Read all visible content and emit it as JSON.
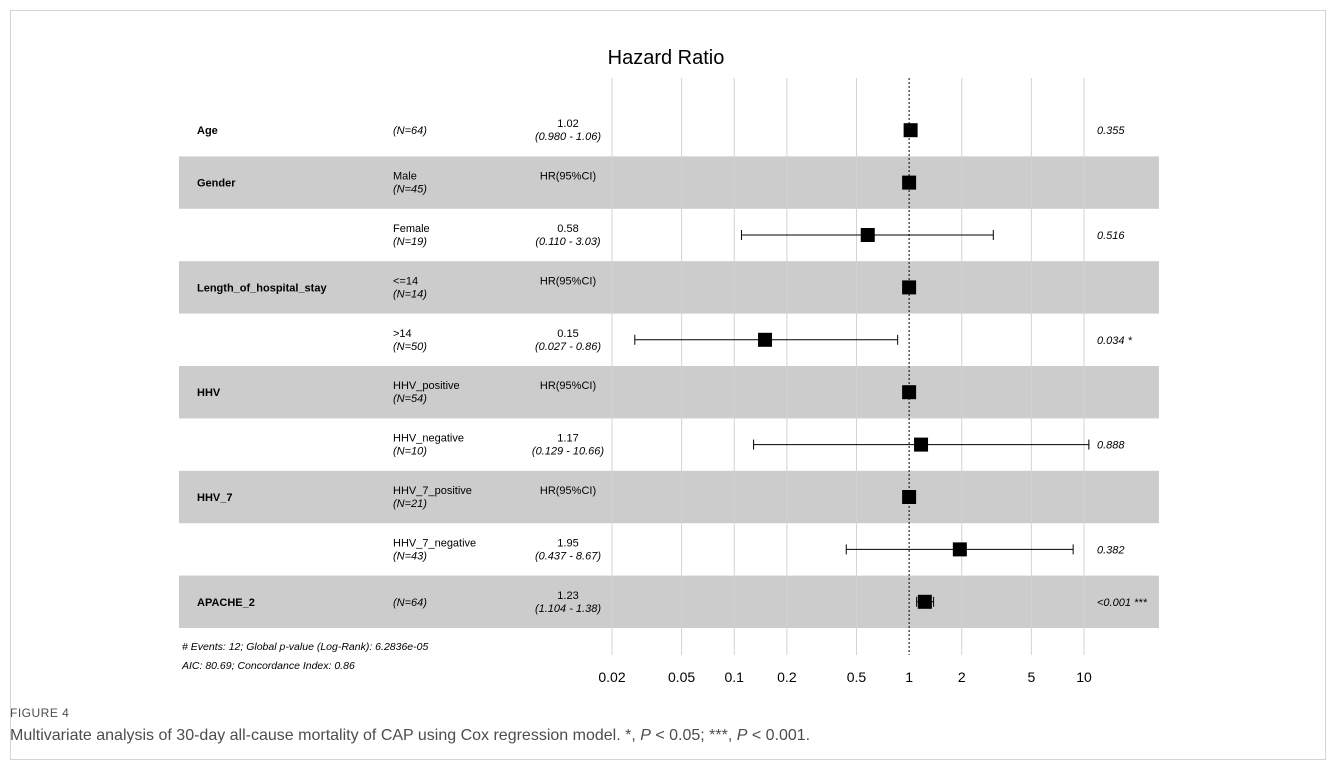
{
  "chart_data": {
    "type": "forest",
    "title": "Hazard Ratio",
    "x_scale": "log",
    "x_ticks": [
      0.02,
      0.05,
      0.1,
      0.2,
      0.5,
      1,
      2,
      5,
      10
    ],
    "x_tick_labels": [
      "0.02",
      "0.05",
      "0.1",
      "0.2",
      "0.5",
      "1",
      "2",
      "5",
      "10"
    ],
    "xlim": [
      0.02,
      10
    ],
    "reference_line": 1,
    "rows": [
      {
        "variable": "Age",
        "level": "",
        "n": "(N=64)",
        "hr_text": "1.02",
        "ci_text": "(0.980 -  1.06)",
        "hr": 1.02,
        "lo": null,
        "hi": null,
        "p": "0.355",
        "shaded": false
      },
      {
        "variable": "Gender",
        "level": "Male",
        "n": "(N=45)",
        "hr_text": "HR(95%CI)",
        "ci_text": "",
        "hr": 1,
        "lo": null,
        "hi": null,
        "p": "",
        "shaded": true
      },
      {
        "variable": "",
        "level": "Female",
        "n": "(N=19)",
        "hr_text": "0.58",
        "ci_text": "(0.110 -  3.03)",
        "hr": 0.58,
        "lo": 0.11,
        "hi": 3.03,
        "p": "0.516",
        "shaded": false
      },
      {
        "variable": "Length_of_hospital_stay",
        "level": "<=14",
        "n": "(N=14)",
        "hr_text": "HR(95%CI)",
        "ci_text": "",
        "hr": 1,
        "lo": null,
        "hi": null,
        "p": "",
        "shaded": true
      },
      {
        "variable": "",
        "level": ">14",
        "n": "(N=50)",
        "hr_text": "0.15",
        "ci_text": "(0.027 -  0.86)",
        "hr": 0.15,
        "lo": 0.027,
        "hi": 0.86,
        "p": "0.034 *",
        "shaded": false
      },
      {
        "variable": "HHV",
        "level": "HHV_positive",
        "n": "(N=54)",
        "hr_text": "HR(95%CI)",
        "ci_text": "",
        "hr": 1,
        "lo": null,
        "hi": null,
        "p": "",
        "shaded": true
      },
      {
        "variable": "",
        "level": "HHV_negative",
        "n": "(N=10)",
        "hr_text": "1.17",
        "ci_text": "(0.129 - 10.66)",
        "hr": 1.17,
        "lo": 0.129,
        "hi": 10.66,
        "p": "0.888",
        "shaded": false
      },
      {
        "variable": "HHV_7",
        "level": "HHV_7_positive",
        "n": "(N=21)",
        "hr_text": "HR(95%CI)",
        "ci_text": "",
        "hr": 1,
        "lo": null,
        "hi": null,
        "p": "",
        "shaded": true
      },
      {
        "variable": "",
        "level": "HHV_7_negative",
        "n": "(N=43)",
        "hr_text": "1.95",
        "ci_text": "(0.437 -  8.67)",
        "hr": 1.95,
        "lo": 0.437,
        "hi": 8.67,
        "p": "0.382",
        "shaded": false
      },
      {
        "variable": "APACHE_2",
        "level": "",
        "n": "(N=64)",
        "hr_text": "1.23",
        "ci_text": "(1.104 -  1.38)",
        "hr": 1.23,
        "lo": 1.104,
        "hi": 1.38,
        "p": "<0.001 ***",
        "shaded": true
      }
    ],
    "footnotes": [
      "# Events: 12; Global p-value (Log-Rank): 6.2836e-05",
      "AIC: 80.69; Concordance Index: 0.86"
    ],
    "colors": {
      "shade": "#cccccc",
      "grid": "#d3d3d3",
      "marker": "#000000",
      "text": "#000000"
    }
  },
  "caption": {
    "label": "FIGURE 4",
    "text_parts": [
      "Multivariate analysis of 30-day all-cause mortality of CAP using Cox regression model. *, ",
      "P",
      " < 0.05; ***, ",
      "P",
      " < 0.001."
    ]
  }
}
